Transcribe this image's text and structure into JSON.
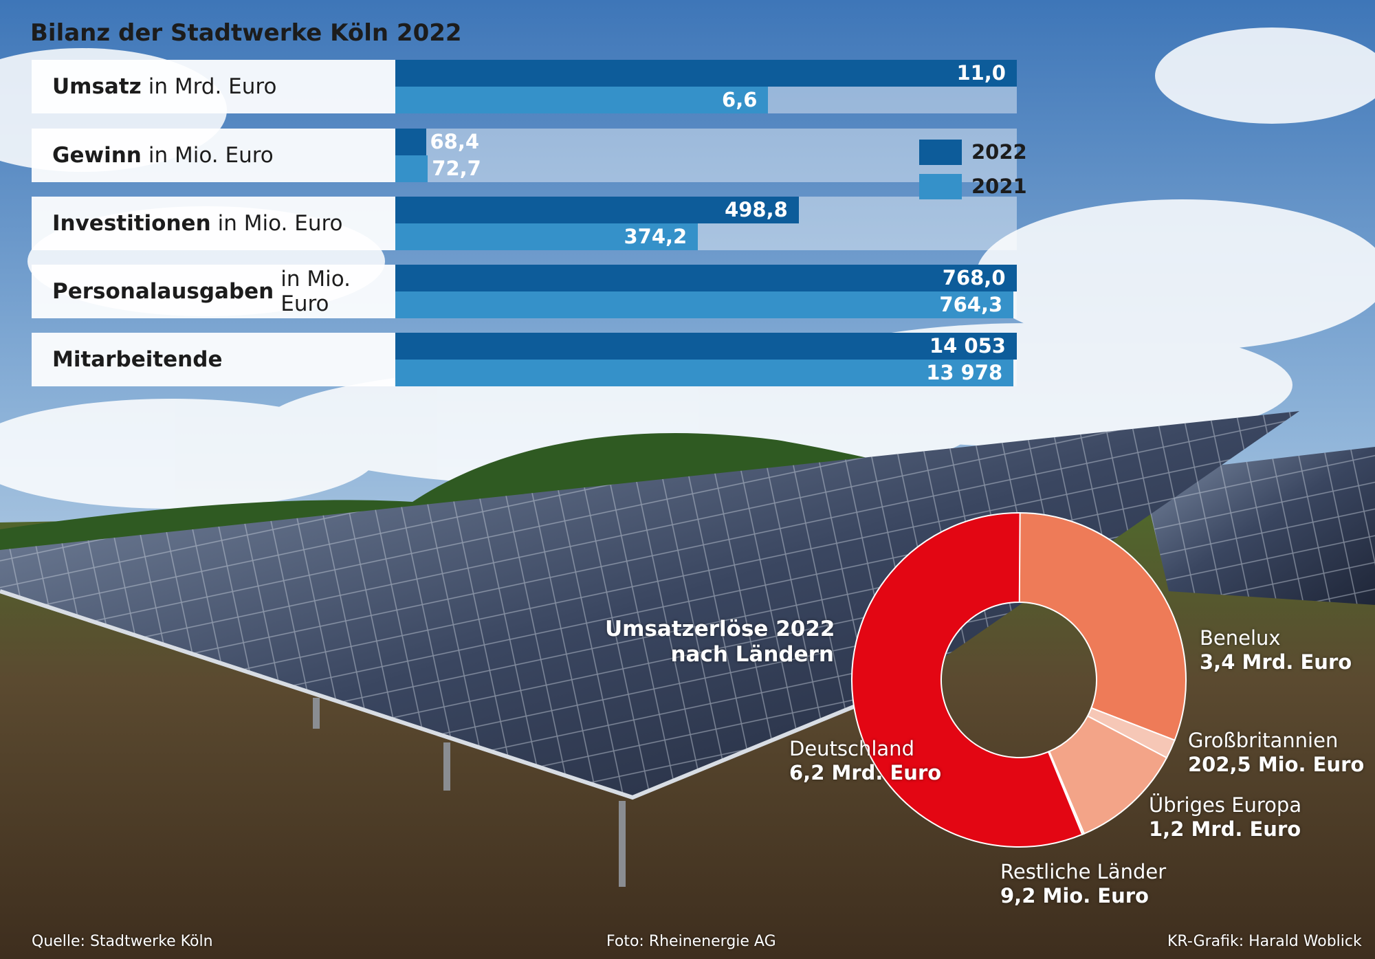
{
  "title": "Bilanz der Stadtwerke Köln 2022",
  "legend": [
    {
      "label": "2022",
      "color": "#0d5c9a"
    },
    {
      "label": "2021",
      "color": "#3591c9"
    }
  ],
  "chart_data": [
    {
      "type": "bar",
      "orientation": "horizontal",
      "title": "Bilanz der Stadtwerke Köln 2022",
      "series_names": [
        "2022",
        "2021"
      ],
      "groups": [
        {
          "label": "Umsatz",
          "unit": "in Mrd. Euro",
          "values": [
            11.0,
            6.6
          ],
          "value_labels": [
            "11,0",
            "6,6"
          ]
        },
        {
          "label": "Gewinn",
          "unit": "in Mio. Euro",
          "values": [
            68.4,
            72.7
          ],
          "value_labels": [
            "68,4",
            "72,7"
          ]
        },
        {
          "label": "Investitionen",
          "unit": "in Mio. Euro",
          "values": [
            498.8,
            374.2
          ],
          "value_labels": [
            "498,8",
            "374,2"
          ]
        },
        {
          "label": "Personalausgaben",
          "unit": "in Mio. Euro",
          "values": [
            768.0,
            764.3
          ],
          "value_labels": [
            "768,0",
            "764,3"
          ]
        },
        {
          "label": "Mitarbeitende",
          "unit": "",
          "values": [
            14053,
            13978
          ],
          "value_labels": [
            "14 053",
            "13 978"
          ]
        }
      ]
    },
    {
      "type": "pie",
      "variant": "donut",
      "title_lines": [
        "Umsatzerlöse 2022",
        "nach Ländern"
      ],
      "slices": [
        {
          "label": "Benelux",
          "value_label": "3,4 Mrd. Euro",
          "value_mio": 3400,
          "color": "#ee7b58"
        },
        {
          "label": "Großbritannien",
          "value_label": "202,5 Mio. Euro",
          "value_mio": 202.5,
          "color": "#f6c7b6"
        },
        {
          "label": "Übriges Europa",
          "value_label": "1,2 Mrd. Euro",
          "value_mio": 1200,
          "color": "#f3a488"
        },
        {
          "label": "Restliche Länder",
          "value_label": "9,2 Mio. Euro",
          "value_mio": 9.2,
          "color": "#fde6dc"
        },
        {
          "label": "Deutschland",
          "value_label": "6,2 Mrd. Euro",
          "value_mio": 6200,
          "color": "#e30613"
        }
      ]
    }
  ],
  "footer": {
    "source": "Quelle: Stadtwerke Köln",
    "photo": "Foto: Rheinenergie AG",
    "credit": "KR-Grafik: Harald Woblick"
  }
}
